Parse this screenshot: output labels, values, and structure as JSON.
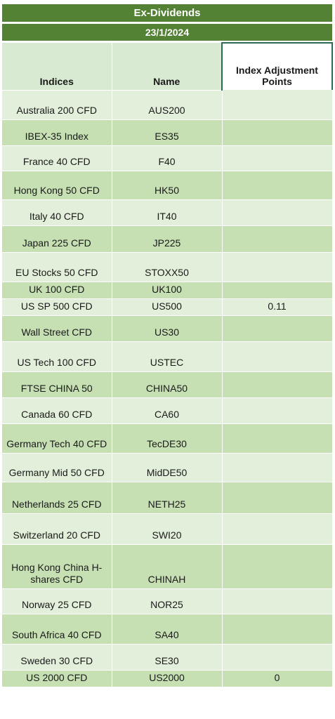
{
  "title": "Ex-Dividends",
  "date": "23/1/2024",
  "columns": [
    "Indices",
    "Name",
    "Index Adjustment Points"
  ],
  "rows": [
    {
      "index": "Australia 200 CFD",
      "name": "AUS200",
      "points": ""
    },
    {
      "index": "IBEX-35 Index",
      "name": "ES35",
      "points": ""
    },
    {
      "index": "France 40 CFD",
      "name": "F40",
      "points": ""
    },
    {
      "index": "Hong Kong 50 CFD",
      "name": "HK50",
      "points": ""
    },
    {
      "index": "Italy 40 CFD",
      "name": "IT40",
      "points": ""
    },
    {
      "index": "Japan 225 CFD",
      "name": "JP225",
      "points": ""
    },
    {
      "index": "EU Stocks 50 CFD",
      "name": "STOXX50",
      "points": ""
    },
    {
      "index": "UK 100 CFD",
      "name": "UK100",
      "points": ""
    },
    {
      "index": "US SP 500 CFD",
      "name": "US500",
      "points": "0.11"
    },
    {
      "index": "Wall Street CFD",
      "name": "US30",
      "points": ""
    },
    {
      "index": "US Tech 100 CFD",
      "name": "USTEC",
      "points": ""
    },
    {
      "index": "FTSE CHINA 50",
      "name": "CHINA50",
      "points": ""
    },
    {
      "index": "Canada 60 CFD",
      "name": "CA60",
      "points": ""
    },
    {
      "index": "Germany Tech 40 CFD",
      "name": "TecDE30",
      "points": ""
    },
    {
      "index": "Germany Mid 50 CFD",
      "name": "MidDE50",
      "points": ""
    },
    {
      "index": "Netherlands 25 CFD",
      "name": "NETH25",
      "points": ""
    },
    {
      "index": "Switzerland 20 CFD",
      "name": "SWI20",
      "points": ""
    },
    {
      "index": "Hong Kong China H-shares CFD",
      "name": "CHINAH",
      "points": ""
    },
    {
      "index": "Norway 25 CFD",
      "name": "NOR25",
      "points": ""
    },
    {
      "index": "South Africa 40 CFD",
      "name": "SA40",
      "points": ""
    },
    {
      "index": "Sweden 30 CFD",
      "name": "SE30",
      "points": ""
    },
    {
      "index": "US 2000 CFD",
      "name": "US2000",
      "points": "0"
    }
  ],
  "colors": {
    "header": "#548235",
    "row_light": "#e2efda",
    "row_dark": "#c6e0b4"
  }
}
